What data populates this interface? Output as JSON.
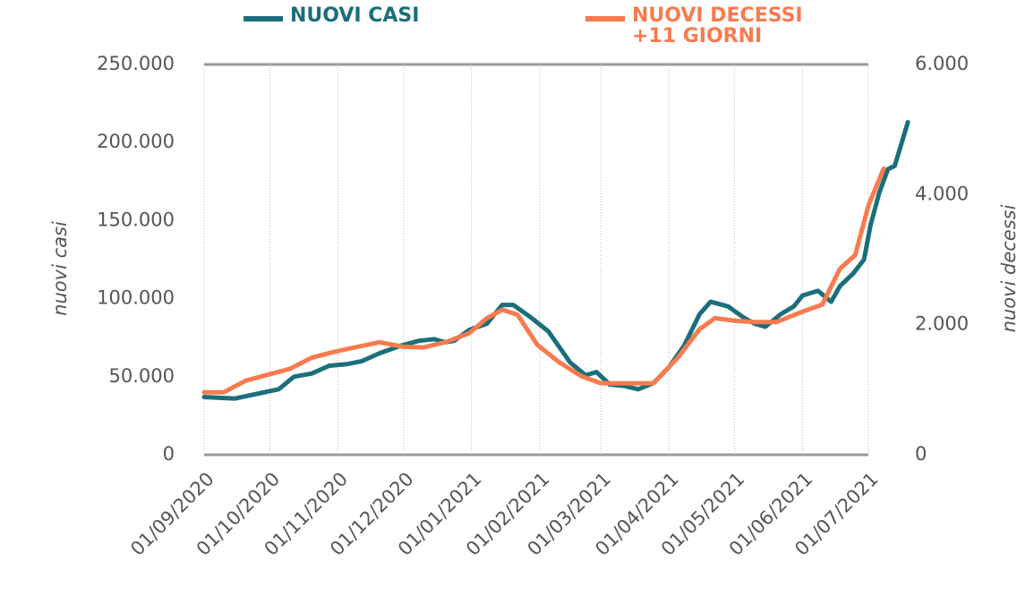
{
  "chart_data": {
    "type": "line",
    "y_label": "nuovi casi",
    "y2_label": "nuovi decessi",
    "xlim": [
      "01/09/2020",
      "01/07/2021"
    ],
    "xticks": [
      "01/09/2020",
      "01/10/2020",
      "01/11/2020",
      "01/12/2020",
      "01/01/2021",
      "01/02/2021",
      "01/03/2021",
      "01/04/2021",
      "01/05/2021",
      "01/06/2021",
      "01/07/2021"
    ],
    "ylim": [
      0,
      250000
    ],
    "yticks": [
      0,
      {
        "value": 50000,
        "label": "50.000"
      },
      {
        "value": 100000,
        "label": "100.000"
      },
      {
        "value": 150000,
        "label": "150.000"
      },
      {
        "value": 200000,
        "label": "200.000"
      },
      {
        "value": 250000,
        "label": "250.000"
      }
    ],
    "y2lim": [
      0,
      6000
    ],
    "y2ticks": [
      0,
      {
        "value": 2000,
        "label": "2.000"
      },
      {
        "value": 4000,
        "label": "4.000"
      },
      {
        "value": 6000,
        "label": "6.000"
      }
    ],
    "grid": true,
    "series": [
      {
        "name": "NUOVI CASI",
        "color": "#1b6e7b",
        "x": [
          "01/09/2020",
          "15/09/2020",
          "25/09/2020",
          "05/10/2020",
          "12/10/2020",
          "20/10/2020",
          "28/10/2020",
          "05/11/2020",
          "12/11/2020",
          "20/11/2020",
          "30/11/2020",
          "08/12/2020",
          "15/12/2020",
          "20/12/2020",
          "24/12/2020",
          "31/12/2020",
          "08/01/2021",
          "15/01/2021",
          "20/01/2021",
          "28/01/2021",
          "05/02/2021",
          "15/02/2021",
          "22/02/2021",
          "27/02/2021",
          "05/03/2021",
          "12/03/2021",
          "18/03/2021",
          "25/03/2021",
          "01/04/2021",
          "08/04/2021",
          "15/04/2021",
          "20/04/2021",
          "28/04/2021",
          "05/05/2021",
          "10/05/2021",
          "15/05/2021",
          "22/05/2021",
          "28/05/2021",
          "01/06/2021",
          "08/06/2021",
          "14/06/2021",
          "18/06/2021",
          "24/06/2021",
          "29/06/2021",
          "02/07/2021",
          "06/07/2021",
          "10/07/2021",
          "13/07/2021",
          "19/07/2021"
        ],
        "values": [
          37000,
          36000,
          39000,
          42000,
          50000,
          52000,
          57000,
          58000,
          60000,
          65000,
          70000,
          73000,
          74000,
          72000,
          73000,
          80000,
          84000,
          96000,
          96000,
          88000,
          79000,
          59000,
          51000,
          53000,
          45000,
          44000,
          42000,
          46000,
          56000,
          70000,
          90000,
          98000,
          95000,
          88000,
          84000,
          82000,
          90000,
          95000,
          102000,
          105000,
          98000,
          108000,
          116000,
          125000,
          147000,
          168000,
          183000,
          185000,
          213000
        ]
      },
      {
        "name": "NUOVI DECESSI +11 GIORNI",
        "color": "#f77b4f",
        "axis": "y2",
        "x": [
          "01/09/2020",
          "10/09/2020",
          "20/09/2020",
          "01/10/2020",
          "10/10/2020",
          "20/10/2020",
          "30/10/2020",
          "10/11/2020",
          "20/11/2020",
          "01/12/2020",
          "10/12/2020",
          "20/12/2020",
          "31/12/2020",
          "08/01/2021",
          "15/01/2021",
          "22/01/2021",
          "31/01/2021",
          "10/02/2021",
          "20/02/2021",
          "01/03/2021",
          "08/03/2021",
          "15/03/2021",
          "25/03/2021",
          "05/04/2021",
          "15/04/2021",
          "22/04/2021",
          "01/05/2021",
          "10/05/2021",
          "20/05/2021",
          "01/06/2021",
          "10/06/2021",
          "18/06/2021",
          "25/06/2021",
          "01/07/2021",
          "08/07/2021"
        ],
        "values": [
          960,
          960,
          1140,
          1240,
          1320,
          1490,
          1580,
          1660,
          1730,
          1660,
          1650,
          1730,
          1870,
          2100,
          2230,
          2150,
          1690,
          1420,
          1210,
          1100,
          1100,
          1100,
          1100,
          1490,
          1930,
          2100,
          2060,
          2040,
          2040,
          2200,
          2310,
          2860,
          3070,
          3830,
          4400
        ]
      }
    ]
  }
}
